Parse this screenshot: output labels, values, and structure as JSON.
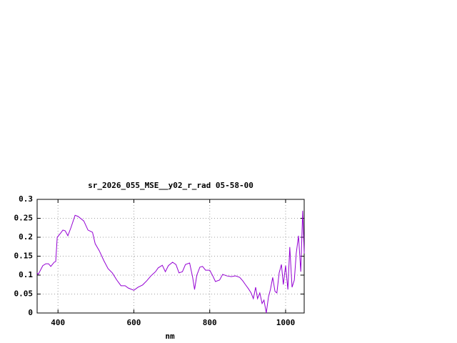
{
  "chart_data": {
    "type": "line",
    "title": "sr_2026_055_MSE__y02_r_rad 05-58-00",
    "xlabel": "nm",
    "x": [
      345,
      348,
      360,
      368,
      375,
      381,
      390,
      394,
      398,
      407,
      413,
      419,
      426,
      434,
      442,
      445,
      453,
      468,
      479,
      491,
      498,
      509,
      521,
      532,
      543,
      555,
      566,
      577,
      585,
      600,
      611,
      623,
      634,
      645,
      657,
      664,
      675,
      683,
      691,
      702,
      711,
      719,
      728,
      736,
      747,
      755,
      760,
      766,
      774,
      781,
      789,
      800,
      808,
      815,
      826,
      834,
      845,
      857,
      868,
      879,
      887,
      894,
      902,
      909,
      915,
      921,
      926,
      932,
      938,
      943,
      949,
      955,
      960,
      966,
      972,
      977,
      983,
      989,
      994,
      1000,
      1006,
      1011,
      1017,
      1023,
      1028,
      1034,
      1040,
      1045,
      1049
    ],
    "series": [
      {
        "color": "#9400d3",
        "values": [
          0.106,
          0.102,
          0.125,
          0.13,
          0.13,
          0.123,
          0.134,
          0.136,
          0.2,
          0.211,
          0.219,
          0.217,
          0.204,
          0.225,
          0.249,
          0.258,
          0.255,
          0.243,
          0.219,
          0.213,
          0.183,
          0.164,
          0.138,
          0.117,
          0.106,
          0.087,
          0.072,
          0.072,
          0.066,
          0.06,
          0.068,
          0.074,
          0.085,
          0.098,
          0.109,
          0.119,
          0.126,
          0.109,
          0.125,
          0.134,
          0.128,
          0.106,
          0.109,
          0.128,
          0.132,
          0.094,
          0.062,
          0.1,
          0.121,
          0.123,
          0.113,
          0.113,
          0.098,
          0.083,
          0.087,
          0.102,
          0.098,
          0.096,
          0.098,
          0.094,
          0.085,
          0.075,
          0.064,
          0.053,
          0.038,
          0.068,
          0.038,
          0.053,
          0.025,
          0.034,
          0,
          0.043,
          0.062,
          0.094,
          0.057,
          0.053,
          0.106,
          0.128,
          0.075,
          0.125,
          0.062,
          0.174,
          0.068,
          0.087,
          0.157,
          0.204,
          0.109,
          0.27,
          0.157
        ]
      }
    ],
    "xlim": [
      345,
      1049
    ],
    "ylim": [
      0,
      0.3
    ],
    "xticks": [
      400,
      600,
      800,
      1000
    ],
    "yticks": [
      0,
      0.05,
      0.1,
      0.15,
      0.2,
      0.25,
      0.3
    ],
    "grid": true
  }
}
